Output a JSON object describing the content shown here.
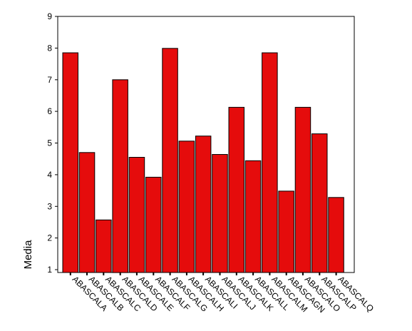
{
  "chart_data": {
    "type": "bar",
    "title": "",
    "xlabel": "",
    "ylabel": "Media",
    "ylim": [
      1,
      9
    ],
    "yticks": [
      "1",
      "2",
      "3",
      "4",
      "5",
      "6",
      "7",
      "8",
      "9"
    ],
    "grid": false,
    "bar_color": "#e50c0c",
    "categories": [
      "ABASCALA",
      "ABASCALB",
      "ABASCALC",
      "ABASCALD",
      "ABASCALE",
      "ABASCALF",
      "ABASCALG",
      "ABASCALH",
      "ABASCALI",
      "ABASCALJ",
      "ABASCALK",
      "ABASCALL",
      "ABASCALM",
      "ABASCAGN",
      "ABASCALO",
      "ABASCALP",
      "ABASCALQ"
    ],
    "values": [
      7.85,
      4.7,
      2.57,
      7.0,
      4.55,
      3.92,
      7.99,
      5.06,
      5.22,
      4.64,
      6.13,
      4.44,
      7.85,
      3.48,
      6.13,
      5.29,
      3.28
    ]
  }
}
